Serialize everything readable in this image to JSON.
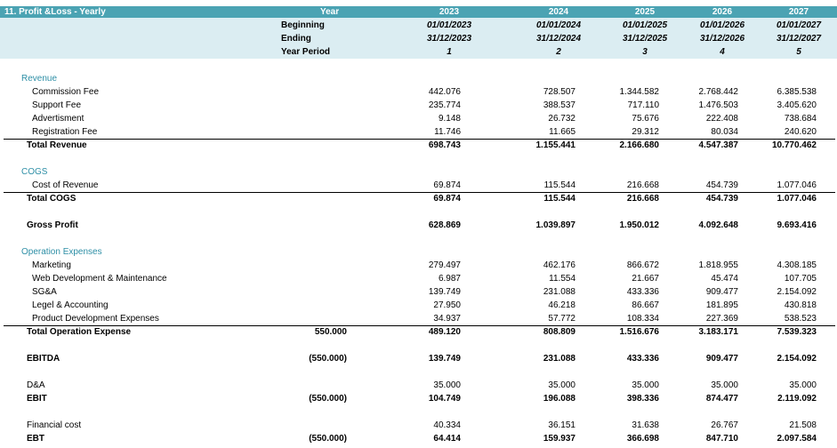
{
  "sheet_title": "11. Profit &Loss - Yearly",
  "header": {
    "year_label": "Year",
    "years": [
      "2023",
      "2024",
      "2025",
      "2026",
      "2027"
    ],
    "beginning_label": "Beginning",
    "beginning": [
      "01/01/2023",
      "01/01/2024",
      "01/01/2025",
      "01/01/2026",
      "01/01/2027"
    ],
    "ending_label": "Ending",
    "ending": [
      "31/12/2023",
      "31/12/2024",
      "31/12/2025",
      "31/12/2026",
      "31/12/2027"
    ],
    "period_label": "Year Period",
    "periods": [
      "1",
      "2",
      "3",
      "4",
      "5"
    ]
  },
  "rows": [
    {
      "label": "Revenue",
      "style": "section"
    },
    {
      "label": "Commission Fee",
      "style": "item",
      "values": [
        "442.076",
        "728.507",
        "1.344.582",
        "2.768.442",
        "6.385.538"
      ]
    },
    {
      "label": "Support Fee",
      "style": "item",
      "values": [
        "235.774",
        "388.537",
        "717.110",
        "1.476.503",
        "3.405.620"
      ]
    },
    {
      "label": "Advertisment",
      "style": "item",
      "values": [
        "9.148",
        "26.732",
        "75.676",
        "222.408",
        "738.684"
      ]
    },
    {
      "label": "Registration Fee",
      "style": "item",
      "values": [
        "11.746",
        "11.665",
        "29.312",
        "80.034",
        "240.620"
      ]
    },
    {
      "label": "Total Revenue",
      "style": "total",
      "values": [
        "698.743",
        "1.155.441",
        "2.166.680",
        "4.547.387",
        "10.770.462"
      ]
    },
    {
      "label": "COGS",
      "style": "section"
    },
    {
      "label": "Cost of Revenue",
      "style": "item",
      "values": [
        "69.874",
        "115.544",
        "216.668",
        "454.739",
        "1.077.046"
      ]
    },
    {
      "label": "Total COGS",
      "style": "total",
      "values": [
        "69.874",
        "115.544",
        "216.668",
        "454.739",
        "1.077.046"
      ]
    },
    {
      "label": "Gross Profit",
      "style": "bold",
      "values": [
        "628.869",
        "1.039.897",
        "1.950.012",
        "4.092.648",
        "9.693.416"
      ]
    },
    {
      "label": "Operation Expenses",
      "style": "section"
    },
    {
      "label": "Marketing",
      "style": "item",
      "values": [
        "279.497",
        "462.176",
        "866.672",
        "1.818.955",
        "4.308.185"
      ]
    },
    {
      "label": "Web Development & Maintenance",
      "style": "item",
      "values": [
        "6.987",
        "11.554",
        "21.667",
        "45.474",
        "107.705"
      ]
    },
    {
      "label": "SG&A",
      "style": "item",
      "values": [
        "139.749",
        "231.088",
        "433.336",
        "909.477",
        "2.154.092"
      ]
    },
    {
      "label": "Legel & Accounting",
      "style": "item",
      "values": [
        "27.950",
        "46.218",
        "86.667",
        "181.895",
        "430.818"
      ]
    },
    {
      "label": "Product Development Expenses",
      "style": "item",
      "values": [
        "34.937",
        "57.772",
        "108.334",
        "227.369",
        "538.523"
      ]
    },
    {
      "label": "Total Operation Expense",
      "style": "total",
      "extra": "550.000",
      "values": [
        "489.120",
        "808.809",
        "1.516.676",
        "3.183.171",
        "7.539.323"
      ]
    },
    {
      "label": "EBITDA",
      "style": "bold",
      "extra": "(550.000)",
      "values": [
        "139.749",
        "231.088",
        "433.336",
        "909.477",
        "2.154.092"
      ]
    },
    {
      "label": "D&A",
      "style": "plain",
      "values": [
        "35.000",
        "35.000",
        "35.000",
        "35.000",
        "35.000"
      ]
    },
    {
      "label": "EBIT",
      "style": "bold",
      "extra": "(550.000)",
      "values": [
        "104.749",
        "196.088",
        "398.336",
        "874.477",
        "2.119.092"
      ]
    },
    {
      "label": "Financial cost",
      "style": "plain",
      "values": [
        "40.334",
        "36.151",
        "31.638",
        "26.767",
        "21.508"
      ]
    },
    {
      "label": "EBT",
      "style": "bold",
      "extra": "(550.000)",
      "values": [
        "64.414",
        "159.937",
        "366.698",
        "847.710",
        "2.097.584"
      ]
    }
  ]
}
